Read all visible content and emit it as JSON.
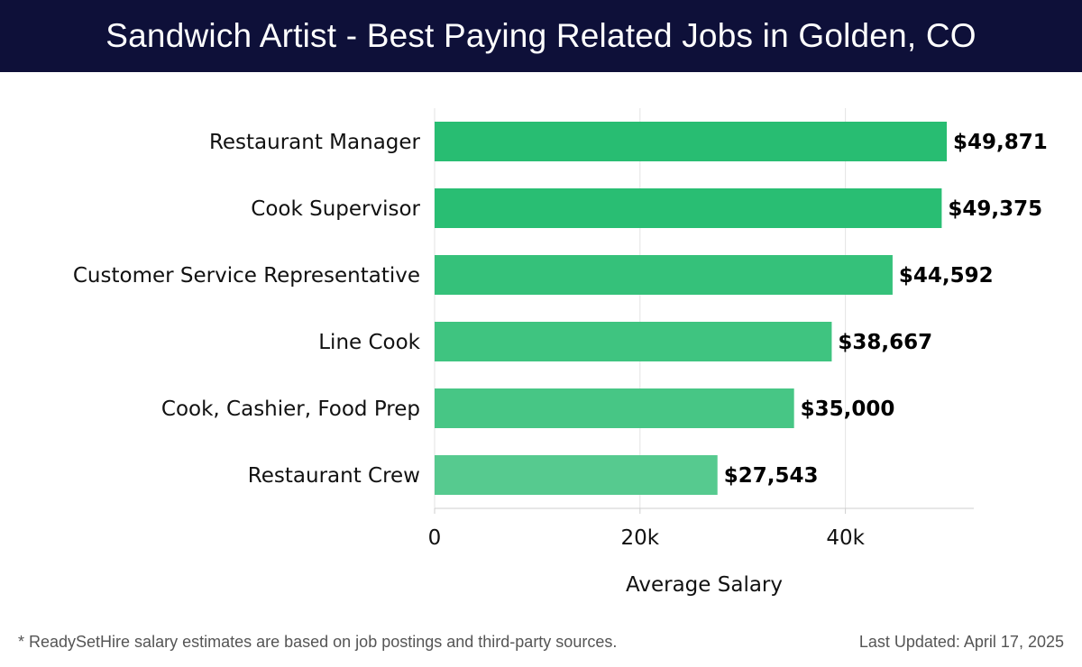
{
  "header": {
    "title": "Sandwich Artist - Best Paying Related Jobs in Golden, CO"
  },
  "chart_data": {
    "type": "bar",
    "orientation": "horizontal",
    "categories": [
      "Restaurant Manager",
      "Cook Supervisor",
      "Customer Service Representative",
      "Line Cook",
      "Cook, Cashier, Food Prep",
      "Restaurant Crew"
    ],
    "values": [
      49871,
      49375,
      44592,
      38667,
      35000,
      27543
    ],
    "value_labels": [
      "$49,871",
      "$49,375",
      "$44,592",
      "$38,667",
      "$35,000",
      "$27,543"
    ],
    "xlabel": "Average Salary",
    "xlim": [
      0,
      52500
    ],
    "xticks": [
      0,
      20000,
      40000
    ],
    "xtick_labels": [
      "0",
      "20k",
      "40k"
    ],
    "grid": true,
    "bar_colors": [
      "#28bd72",
      "#29be73",
      "#35c17a",
      "#3fc480",
      "#47c685",
      "#56ca8f"
    ]
  },
  "footer": {
    "note": "* ReadySetHire salary estimates are based on job postings and third-party sources.",
    "updated": "Last Updated: April 17, 2025"
  }
}
